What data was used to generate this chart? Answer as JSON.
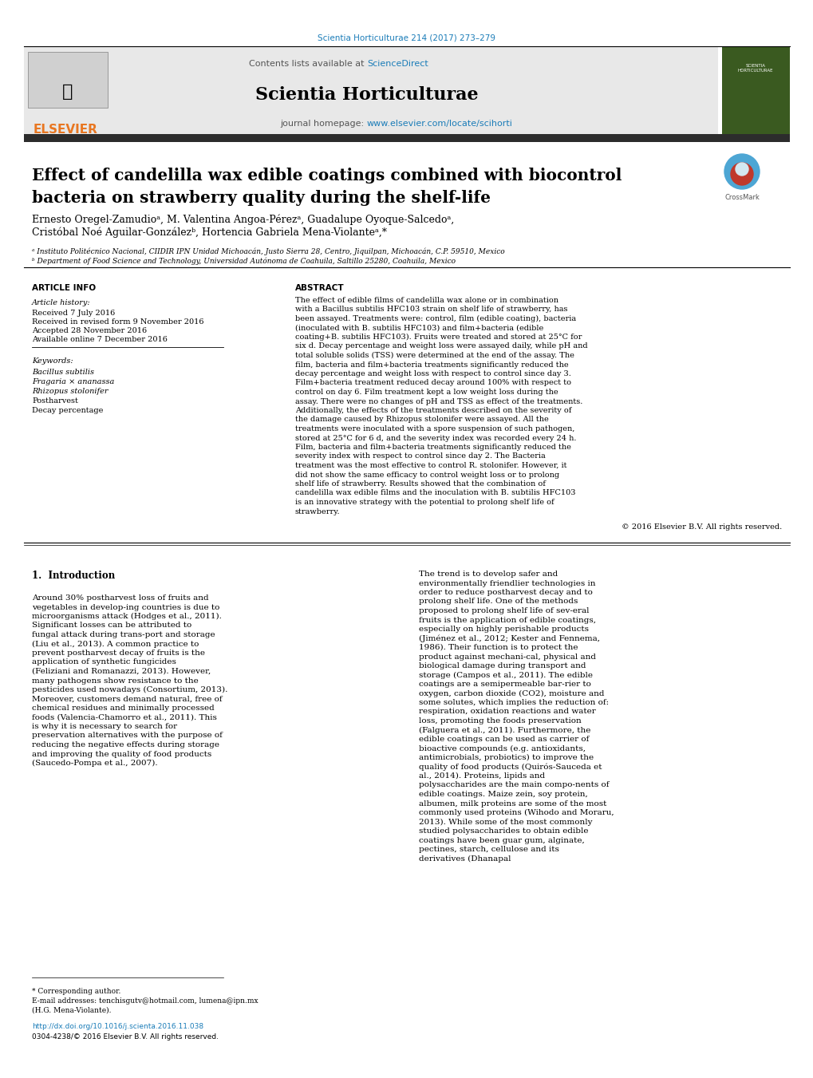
{
  "journal_ref": "Scientia Horticulturae 214 (2017) 273–279",
  "contents_line": "Contents lists available at ",
  "sciencedirect": "ScienceDirect",
  "journal_name": "Scientia Horticulturae",
  "journal_homepage_pre": "journal homepage: ",
  "journal_url": "www.elsevier.com/locate/scihorti",
  "title_line1": "Effect of candelilla wax edible coatings combined with biocontrol",
  "title_line2": "bacteria on strawberry quality during the shelf-life",
  "authors": "Ernesto Oregel-Zamudioᵃ, M. Valentina Angoa-Pérezᵃ, Guadalupe Oyoque-Salcedoᵃ,",
  "authors2": "Cristóbal Noé Aguilar-Gonzálezᵇ, Hortencia Gabriela Mena-Violanteᵃ,*",
  "affil_a": "ᵃ Instituto Politécnico Nacional, CIIDIR IPN Unidad Michoacán, Justo Sierra 28, Centro, Jiquilpan, Michoacán, C.P. 59510, Mexico",
  "affil_b": "ᵇ Department of Food Science and Technology, Universidad Autónoma de Coahuila, Saltillo 25280, Coahuila, Mexico",
  "article_info_header": "ARTICLE INFO",
  "abstract_header": "ABSTRACT",
  "article_history_label": "Article history:",
  "received": "Received 7 July 2016",
  "received_revised": "Received in revised form 9 November 2016",
  "accepted": "Accepted 28 November 2016",
  "available": "Available online 7 December 2016",
  "keywords_label": "Keywords:",
  "keyword1": "Bacillus subtilis",
  "keyword2": "Fragaria × ananassa",
  "keyword3": "Rhizopus stolonifer",
  "keyword4": "Postharvest",
  "keyword5": "Decay percentage",
  "abstract_text": "The effect of edible films of candelilla wax alone or in combination with a Bacillus subtilis HFC103 strain on shelf life of strawberry, has been assayed. Treatments were: control, film (edible coating), bacteria (inoculated with B. subtilis HFC103) and film+bacteria (edible coating+B. subtilis HFC103). Fruits were treated and stored at 25°C for six d. Decay percentage and weight loss were assayed daily, while pH and total soluble solids (TSS) were determined at the end of the assay. The film, bacteria and film+bacteria treatments significantly reduced the decay percentage and weight loss with respect to control since day 3. Film+bacteria treatment reduced decay around 100% with respect to control on day 6. Film treatment kept a low weight loss during the assay. There were no changes of pH and TSS as effect of the treatments. Additionally, the effects of the treatments described on the severity of the damage caused by Rhizopus stolonifer were assayed. All the treatments were inoculated with a spore suspension of such pathogen, stored at 25°C for 6 d, and the severity index was recorded every 24 h. Film, bacteria and film+bacteria treatments significantly reduced the severity index with respect to control since day 2. The Bacteria treatment was the most effective to control R. stolonifer. However, it did not show the same efficacy to control weight loss or to prolong shelf life of strawberry. Results showed that the combination of candelilla wax edible films and the inoculation with B. subtilis HFC103 is an innovative strategy with the potential to prolong shelf life of strawberry.",
  "copyright": "© 2016 Elsevier B.V. All rights reserved.",
  "intro_header": "1.  Introduction",
  "intro_col1": "Around 30% postharvest loss of fruits and vegetables in develop-ing countries is due to microorganisms attack (Hodges et al., 2011). Significant losses can be attributed to fungal attack during trans-port and storage (Liu et al., 2013). A common practice to prevent postharvest decay of fruits is the application of synthetic fungicides (Feliziani and Romanazzi, 2013). However, many pathogens show resistance to the pesticides used nowadays (Consortium, 2013). Moreover, customers demand natural, free of chemical residues and minimally processed foods (Valencia-Chamorro et al., 2011). This is why it is necessary to search for preservation alternatives with the purpose of reducing the negative effects during storage and improving the quality of food products (Saucedo-Pompa et al., 2007).",
  "intro_col2": "The trend is to develop safer and environmentally friendlier technologies in order to reduce postharvest decay and to prolong shelf life. One of the methods proposed to prolong shelf life of sev-eral fruits is the application of edible coatings, especially on highly perishable products (Jiménez et al., 2012; Kester and Fennema, 1986). Their function is to protect the product against mechani-cal, physical and biological damage during transport and storage (Campos et al., 2011). The edible coatings are a semipermeable bar-rier to oxygen, carbon dioxide (CO2), moisture and some solutes, which implies the reduction of: respiration, oxidation reactions and water loss, promoting the foods preservation (Falguera et al., 2011). Furthermore, the edible coatings can be used as carrier of bioactive compounds (e.g. antioxidants, antimicrobials, probiotics) to improve the quality of food products (Quirós-Sauceda et al., 2014). Proteins, lipids and polysaccharides are the main compo-nents of edible coatings. Maize zein, soy protein, albumen, milk proteins are some of the most commonly used proteins (Wihodo and Moraru, 2013). While some of the most commonly studied polysaccharides to obtain edible coatings have been guar gum, alginate, pectines, starch, cellulose and its derivatives (Dhanapal",
  "footnote_star": "* Corresponding author.",
  "footnote_email": "E-mail addresses: tenchisgutv@hotmail.com, lumena@ipn.mx",
  "footnote_name": "(H.G. Mena-Violante).",
  "doi_text": "http://dx.doi.org/10.1016/j.scienta.2016.11.038",
  "issn_text": "0304-4238/© 2016 Elsevier B.V. All rights reserved.",
  "link_color": "#1a7cb8",
  "orange_color": "#e87722",
  "dark_color": "#1a1a1a",
  "header_bar_color": "#2c2c2c",
  "section_bg": "#e8e8e8"
}
